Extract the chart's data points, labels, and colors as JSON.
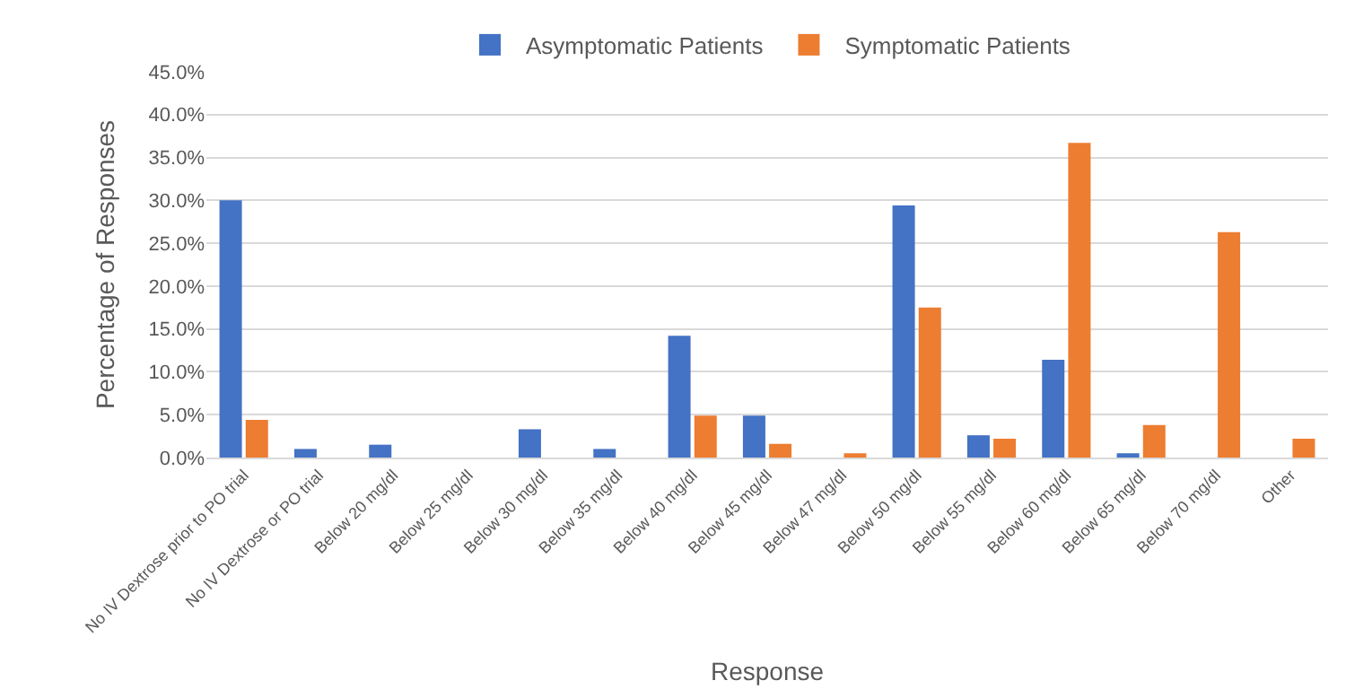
{
  "chart_data": {
    "type": "bar",
    "xlabel": "Response",
    "ylabel": "Percentage of Responses",
    "categories": [
      "No IV Dextrose prior to PO trial",
      "No IV Dextrose or PO trial",
      "Below 20 mg/dl",
      "Below 25 mg/dl",
      "Below 30 mg/dl",
      "Below 35 mg/dl",
      "Below 40 mg/dl",
      "Below 45 mg/dl",
      "Below 47 mg/dl",
      "Below 50 mg/dl",
      "Below 55 mg/dl",
      "Below 60 mg/dl",
      "Below 65 mg/dl",
      "Below 70 mg/dl",
      "Other"
    ],
    "series": [
      {
        "name": "Asymptomatic Patients",
        "color": "#4472c4",
        "values": [
          30.0,
          1.0,
          1.5,
          0,
          3.3,
          1.0,
          14.2,
          4.9,
          0,
          29.4,
          2.6,
          11.4,
          0.5,
          0,
          0
        ]
      },
      {
        "name": "Symptomatic Patients",
        "color": "#ed7d31",
        "values": [
          4.4,
          0,
          0,
          0,
          0,
          0,
          4.9,
          1.6,
          0.5,
          17.5,
          2.2,
          36.7,
          3.8,
          26.3,
          2.2
        ]
      }
    ],
    "ylim": [
      0,
      45
    ],
    "yticks": [
      {
        "value": 0,
        "label": "0.0%"
      },
      {
        "value": 5,
        "label": "5.0%"
      },
      {
        "value": 10,
        "label": "10.0%"
      },
      {
        "value": 15,
        "label": "15.0%"
      },
      {
        "value": 20,
        "label": "20.0%"
      },
      {
        "value": 25,
        "label": "25.0%"
      },
      {
        "value": 30,
        "label": "30.0%"
      },
      {
        "value": 35,
        "label": "35.0%"
      },
      {
        "value": 40,
        "label": "40.0%"
      },
      {
        "value": 45,
        "label": "45.0%"
      }
    ],
    "grid": "y",
    "legend": "top"
  }
}
